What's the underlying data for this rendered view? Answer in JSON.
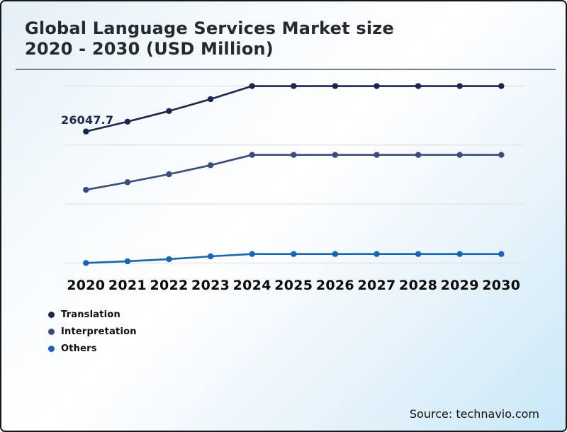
{
  "header": {
    "title_line1": "Global Language Services Market size",
    "title_line2": "2020 - 2030 (USD Million)"
  },
  "footer": {
    "source": "Source: technavio.com"
  },
  "style": {
    "gridline_color": "#e4e5e3",
    "data_label_color": "#1b2750"
  },
  "chart_data": {
    "type": "line",
    "title": "Global Language Services Market size 2020 - 2030 (USD Million)",
    "xlabel": "",
    "ylabel": "",
    "categories": [
      "2020",
      "2021",
      "2022",
      "2023",
      "2024",
      "2025",
      "2026",
      "2027",
      "2028",
      "2029",
      "2030"
    ],
    "series": [
      {
        "name": "Translation",
        "color": "#1a2650",
        "values": [
          26047.7,
          28000,
          30100,
          32460,
          35050,
          35050,
          35050,
          35050,
          35050,
          35050,
          35050
        ]
      },
      {
        "name": "Interpretation",
        "color": "#3b4c7e",
        "values": [
          14500,
          16000,
          17590,
          19370,
          21420,
          21420,
          21420,
          21420,
          21420,
          21420,
          21420
        ]
      },
      {
        "name": "Others",
        "color": "#1565bb",
        "values": [
          15,
          340,
          760,
          1320,
          1780,
          1780,
          1780,
          1780,
          1780,
          1780,
          1780
        ]
      }
    ],
    "data_labels": [
      {
        "series": "Translation",
        "category": "2020",
        "text": "26047.7"
      }
    ],
    "ylim": [
      0,
      35053
    ],
    "gridline_count": 4,
    "y_axis_visible": false,
    "legend_position": "bottom-left"
  }
}
